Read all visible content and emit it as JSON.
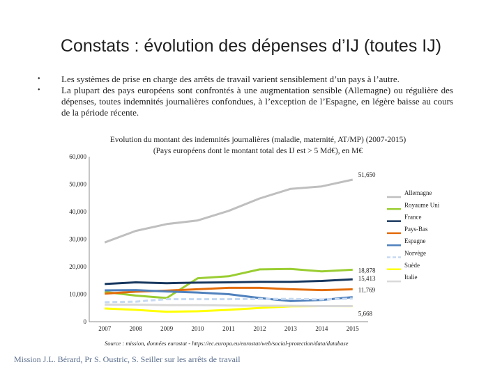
{
  "slide": {
    "title": "Constats : évolution des dépenses d’IJ (toutes IJ)",
    "bullets": [
      "Les systèmes de prise en charge des arrêts de travail varient sensiblement d’un pays à l’autre.",
      "La plupart des pays européens sont confrontés à une augmentation sensible (Allemagne) ou régulière des dépenses, toutes indemnités journalières confondues, à l’exception de l’Espagne, en légère baisse au cours de la période récente."
    ],
    "bullet_symbol": "•",
    "footer": "Mission J.L. Bérard, Pr S. Oustric, S. Seiller sur les arrêts de travail"
  },
  "chart_data": {
    "type": "line",
    "title": "Evolution du montant des indemnités journalières (maladie, maternité, AT/MP) (2007-2015)",
    "subtitle": "(Pays européens dont le montant total des IJ est > 5 Md€), en M€",
    "source": "Source : mission, données eurostat - https://ec.europa.eu/eurostat/web/social-protection/data/database",
    "x": [
      "2007",
      "2008",
      "2009",
      "2010",
      "2011",
      "2012",
      "2013",
      "2014",
      "2015"
    ],
    "ylim": [
      0,
      60000
    ],
    "yticks": [
      "0",
      "10,000",
      "20,000",
      "30,000",
      "40,000",
      "50,000",
      "60,000"
    ],
    "ytick_values": [
      0,
      10000,
      20000,
      30000,
      40000,
      50000,
      60000
    ],
    "grid": false,
    "legend_position": "right",
    "series": [
      {
        "name": "Allemagne",
        "color": "#bfbfbf",
        "dashed": false,
        "values": [
          28800,
          33000,
          35500,
          36800,
          40300,
          44800,
          48300,
          49200,
          51650
        ]
      },
      {
        "name": "Royaume Uni",
        "color": "#9acd32",
        "dashed": false,
        "values": [
          10800,
          9500,
          8600,
          15800,
          16500,
          19000,
          19200,
          18300,
          18878
        ]
      },
      {
        "name": "France",
        "color": "#17375e",
        "dashed": false,
        "values": [
          13700,
          14300,
          14000,
          14200,
          14300,
          14500,
          14500,
          14800,
          15413
        ]
      },
      {
        "name": "Pays-Bas",
        "color": "#e36c09",
        "dashed": false,
        "values": [
          10200,
          10900,
          11300,
          11800,
          12300,
          12300,
          11800,
          11500,
          11769
        ]
      },
      {
        "name": "Espagne",
        "color": "#4f81bd",
        "dashed": false,
        "values": [
          11400,
          11500,
          11000,
          10600,
          10000,
          8600,
          7500,
          7900,
          8900
        ]
      },
      {
        "name": "Norvège",
        "color": "#c6d9f1",
        "dashed": true,
        "values": [
          7100,
          7300,
          8200,
          8200,
          8200,
          8300,
          8300,
          8100,
          8400
        ]
      },
      {
        "name": "Suède",
        "color": "#ffff00",
        "dashed": false,
        "values": [
          4800,
          4300,
          3600,
          3800,
          4300,
          5000,
          5600,
          5700,
          5668
        ]
      },
      {
        "name": "Italie",
        "color": "#d9d9d9",
        "dashed": false,
        "values": [
          6200,
          6200,
          6000,
          6000,
          5900,
          5800,
          5800,
          5700,
          5700
        ]
      }
    ],
    "data_labels": [
      {
        "series": "Allemagne",
        "text": "51,650"
      },
      {
        "series": "Royaume Uni",
        "text": "18,878"
      },
      {
        "series": "France",
        "text": "15,413"
      },
      {
        "series": "Pays-Bas",
        "text": "11,769"
      },
      {
        "series": "Suède",
        "text": "5,668"
      }
    ]
  }
}
